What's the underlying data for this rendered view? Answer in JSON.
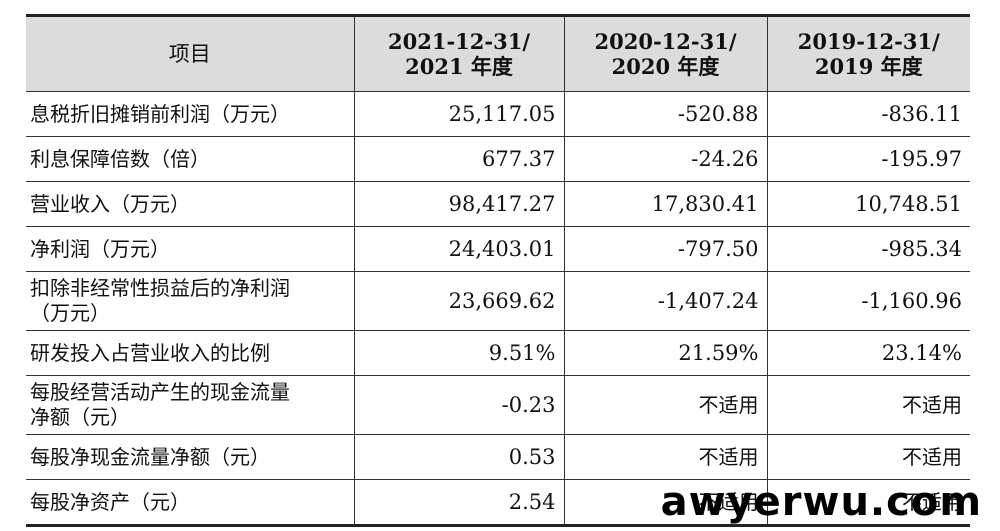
{
  "table": {
    "headers": [
      {
        "line1": "项目",
        "line2": ""
      },
      {
        "line1": "2021-12-31/",
        "line2": "2021 年度"
      },
      {
        "line1": "2020-12-31/",
        "line2": "2020 年度"
      },
      {
        "line1": "2019-12-31/",
        "line2": "2019 年度"
      }
    ],
    "rows": [
      {
        "label": "息税折旧摊销前利润（万元）",
        "v2021": "25,117.05",
        "v2020": "-520.88",
        "v2019": "-836.11"
      },
      {
        "label": "利息保障倍数（倍）",
        "v2021": "677.37",
        "v2020": "-24.26",
        "v2019": "-195.97"
      },
      {
        "label": "营业收入（万元）",
        "v2021": "98,417.27",
        "v2020": "17,830.41",
        "v2019": "10,748.51"
      },
      {
        "label": "净利润（万元）",
        "v2021": "24,403.01",
        "v2020": "-797.50",
        "v2019": "-985.34"
      },
      {
        "label_line1": "扣除非经常性损益后的净利润",
        "label_line2": "（万元）",
        "v2021": "23,669.62",
        "v2020": "-1,407.24",
        "v2019": "-1,160.96"
      },
      {
        "label": "研发投入占营业收入的比例",
        "v2021": "9.51%",
        "v2020": "21.59%",
        "v2019": "23.14%"
      },
      {
        "label_line1": "每股经营活动产生的现金流量",
        "label_line2": "净额（元）",
        "v2021": "-0.23",
        "v2020": "不适用",
        "v2019": "不适用"
      },
      {
        "label": "每股净现金流量净额（元）",
        "v2021": "0.53",
        "v2020": "不适用",
        "v2019": "不适用"
      },
      {
        "label": "每股净资产（元）",
        "v2021": "2.54",
        "v2020": "不适用",
        "v2019": "不适用"
      }
    ]
  },
  "watermark": {
    "text": "awyerwu.com"
  }
}
